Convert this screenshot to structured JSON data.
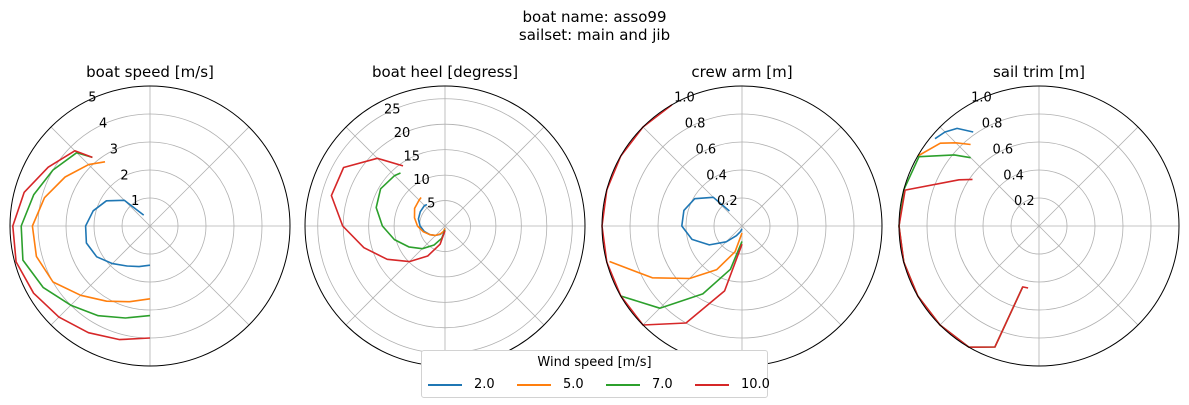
{
  "figure": {
    "title_line1": "boat name: asso99",
    "title_line2": "sailset: main and jib"
  },
  "legend": {
    "title": "Wind speed [m/s]",
    "items": [
      {
        "label": "2.0",
        "color": "#1f77b4"
      },
      {
        "label": "5.0",
        "color": "#ff7f0e"
      },
      {
        "label": "7.0",
        "color": "#2ca02c"
      },
      {
        "label": "10.0",
        "color": "#d62728"
      }
    ]
  },
  "chart_data": [
    {
      "type": "line",
      "projection": "polar",
      "title": "boat speed [m/s]",
      "angle_unit": "degrees",
      "angle_convention": "0 at top, clockwise",
      "rlim": [
        0,
        5
      ],
      "rticks": [
        1,
        2,
        3,
        4,
        5
      ],
      "rtick_labels": [
        "1",
        "2",
        "3",
        "4",
        "5"
      ],
      "grid": true,
      "series": [
        {
          "name": "2.0",
          "color": "#1f77b4",
          "theta": [
            -30,
            -45,
            -60,
            -75,
            -90,
            -105,
            -120,
            -135,
            -150,
            -165,
            -180
          ],
          "r": [
            0.45,
            1.3,
            1.8,
            2.1,
            2.3,
            2.35,
            2.2,
            1.9,
            1.65,
            1.5,
            1.4
          ]
        },
        {
          "name": "5.0",
          "color": "#ff7f0e",
          "theta": [
            -35,
            -45,
            -60,
            -75,
            -90,
            -105,
            -120,
            -135,
            -150,
            -165,
            -180
          ],
          "r": [
            2.8,
            3.1,
            3.5,
            3.9,
            4.2,
            4.2,
            4.0,
            3.5,
            3.1,
            2.8,
            2.6
          ]
        },
        {
          "name": "7.0",
          "color": "#2ca02c",
          "theta": [
            -40,
            -45,
            -60,
            -75,
            -90,
            -105,
            -120,
            -135,
            -150,
            -165,
            -180
          ],
          "r": [
            3.2,
            3.7,
            4.0,
            4.3,
            4.6,
            4.7,
            4.4,
            4.0,
            3.7,
            3.4,
            3.2
          ]
        },
        {
          "name": "10.0",
          "color": "#d62728",
          "theta": [
            -40,
            -45,
            -60,
            -75,
            -90,
            -105,
            -120,
            -135,
            -150,
            -165,
            -180
          ],
          "r": [
            3.2,
            3.8,
            4.2,
            4.65,
            4.9,
            4.95,
            4.8,
            4.6,
            4.4,
            4.2,
            4.0
          ]
        }
      ]
    },
    {
      "type": "line",
      "projection": "polar",
      "title": "boat heel [degress]",
      "angle_unit": "degrees",
      "angle_convention": "0 at top, clockwise",
      "rlim": [
        0,
        27.5
      ],
      "rticks": [
        5,
        10,
        15,
        20,
        25
      ],
      "rtick_labels": [
        "5",
        "10",
        "15",
        "20",
        "25"
      ],
      "grid": true,
      "series": [
        {
          "name": "2.0",
          "color": "#1f77b4",
          "theta": [
            -40,
            -45,
            -60,
            -75,
            -90,
            -105,
            -120,
            -135,
            -150,
            -165,
            -180
          ],
          "r": [
            5.5,
            5.7,
            5.6,
            5.4,
            4.9,
            4.2,
            3.4,
            2.6,
            1.9,
            1.2,
            0.5
          ]
        },
        {
          "name": "5.0",
          "color": "#ff7f0e",
          "theta": [
            -40,
            -45,
            -60,
            -75,
            -90,
            -105,
            -120,
            -135,
            -150,
            -165,
            -180
          ],
          "r": [
            7.3,
            7.2,
            6.9,
            6.2,
            5.4,
            4.4,
            3.4,
            2.6,
            1.8,
            1.1,
            0.5
          ]
        },
        {
          "name": "7.0",
          "color": "#2ca02c",
          "theta": [
            -40,
            -45,
            -60,
            -75,
            -90,
            -105,
            -120,
            -135,
            -150,
            -165,
            -180
          ],
          "r": [
            13.6,
            14.0,
            14.6,
            14.0,
            12.3,
            10.3,
            8.2,
            6.3,
            4.3,
            2.5,
            0.8
          ]
        },
        {
          "name": "10.0",
          "color": "#d62728",
          "theta": [
            -35,
            -45,
            -60,
            -75,
            -90,
            -105,
            -120,
            -135,
            -150,
            -165,
            -180
          ],
          "r": [
            14.4,
            18.8,
            23.0,
            23.1,
            20.1,
            16.5,
            13.1,
            9.9,
            6.8,
            3.7,
            0.9
          ]
        }
      ]
    },
    {
      "type": "line",
      "projection": "polar",
      "title": "crew arm [m]",
      "angle_unit": "degrees",
      "angle_convention": "0 at top, clockwise",
      "rlim": [
        0,
        1.0
      ],
      "rticks": [
        0.2,
        0.4,
        0.6,
        0.8,
        1.0
      ],
      "rtick_labels": [
        "0.2",
        "0.4",
        "0.6",
        "0.8",
        "1.0"
      ],
      "grid": true,
      "series": [
        {
          "name": "2.0",
          "color": "#1f77b4",
          "theta": [
            -40,
            -45,
            -60,
            -75,
            -90,
            -105,
            -120,
            -135,
            -150,
            -165,
            -180
          ],
          "r": [
            0.14,
            0.29,
            0.39,
            0.43,
            0.43,
            0.37,
            0.27,
            0.16,
            0.08,
            0.04,
            0.02
          ]
        },
        {
          "name": "5.0",
          "color": "#ff7f0e",
          "theta": [
            -105,
            -120,
            -135,
            -150,
            -165,
            -180
          ],
          "r": [
            0.98,
            0.74,
            0.53,
            0.36,
            0.19,
            0.05
          ]
        },
        {
          "name": "7.0",
          "color": "#2ca02c",
          "theta": [
            -120,
            -135,
            -150,
            -165,
            -180
          ],
          "r": [
            1.0,
            0.83,
            0.56,
            0.32,
            0.11
          ]
        },
        {
          "name": "10.0",
          "color": "#d62728",
          "theta": [
            -30,
            -45,
            -60,
            -75,
            -90,
            -105,
            -120,
            -135,
            -150,
            -165,
            -180
          ],
          "r": [
            1.0,
            1.0,
            1.0,
            1.0,
            1.0,
            1.0,
            1.0,
            1.0,
            0.8,
            0.48,
            0.13
          ]
        }
      ]
    },
    {
      "type": "line",
      "projection": "polar",
      "title": "sail trim [m]",
      "angle_unit": "degrees",
      "angle_convention": "0 at top, clockwise",
      "rlim": [
        0,
        1.0
      ],
      "rticks": [
        0.2,
        0.4,
        0.6,
        0.8,
        1.0
      ],
      "rtick_labels": [
        "0.2",
        "0.4",
        "0.6",
        "0.8",
        "1.0"
      ],
      "grid": true,
      "series": [
        {
          "name": "2.0",
          "color": "#1f77b4",
          "theta": [
            -35,
            -40,
            -45,
            -50
          ],
          "r": [
            0.82,
            0.91,
            0.95,
            0.97
          ]
        },
        {
          "name": "5.0",
          "color": "#ff7f0e",
          "theta": [
            -40,
            -45,
            -50,
            -60
          ],
          "r": [
            0.76,
            0.84,
            0.92,
            1.0
          ]
        },
        {
          "name": "7.0",
          "color": "#2ca02c",
          "theta": [
            -45,
            -50,
            -60,
            -75,
            -90,
            -105,
            -120,
            -135,
            -150,
            -160,
            -165
          ],
          "r": [
            0.69,
            0.79,
            0.99,
            1.0,
            1.0,
            1.0,
            1.0,
            1.0,
            1.0,
            0.92,
            0.45
          ]
        },
        {
          "name": "10.0",
          "color": "#d62728",
          "theta": [
            -55,
            -60,
            -75,
            -90,
            -105,
            -120,
            -135,
            -150,
            -160,
            -165,
            -170
          ],
          "r": [
            0.58,
            0.66,
            0.99,
            1.0,
            1.0,
            1.0,
            1.0,
            1.0,
            0.92,
            0.45,
            0.45
          ]
        }
      ]
    }
  ]
}
